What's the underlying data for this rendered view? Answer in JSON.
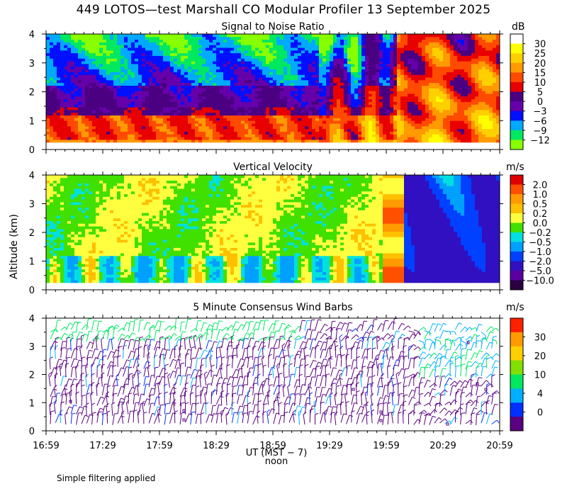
{
  "title": "449 LOTOS—test Marshall CO Modular Profiler 13 September 2025",
  "xlabel": "UT  (MST − 7)",
  "xlabel_note": "noon",
  "ylabel": "Altitude (km)",
  "footnote": "Simple filtering applied",
  "x_ticks": [
    "16:59",
    "17:29",
    "17:59",
    "18:29",
    "18:59",
    "19:29",
    "19:59",
    "20:29",
    "20:59"
  ],
  "chart_data": [
    {
      "type": "heatmap",
      "title": "Signal to Noise Ratio",
      "unit": "dB",
      "xlim": [
        "16:59",
        "20:59"
      ],
      "ylim": [
        0,
        4
      ],
      "y_ticks": [
        0,
        1,
        2,
        3,
        4
      ],
      "colorbar": {
        "labels": [
          "30",
          "25",
          "20",
          "15",
          "10",
          "5",
          "0",
          "−3",
          "−6",
          "−9",
          "−12"
        ],
        "colors": [
          "#ffffff",
          "#ffff00",
          "#ffd000",
          "#ff9a00",
          "#ff4a00",
          "#e80000",
          "#4a0080",
          "#6600aa",
          "#0010ff",
          "#00aaff",
          "#00e860",
          "#88ff00"
        ]
      },
      "regions": [
        {
          "x": [
            "16:59",
            "20:59"
          ],
          "y": [
            0.2,
            1.2
          ],
          "level": "10-20 dB"
        },
        {
          "x": [
            "16:59",
            "19:29"
          ],
          "y": [
            1.2,
            2.3
          ],
          "level": "0-5 dB"
        },
        {
          "x": [
            "16:59",
            "19:29"
          ],
          "y": [
            2.3,
            4.0
          ],
          "level": "-12 to -3 dB"
        },
        {
          "x": [
            "19:59",
            "20:59"
          ],
          "y": [
            0.2,
            4.0
          ],
          "level": "10-25 dB"
        }
      ]
    },
    {
      "type": "heatmap",
      "title": "Vertical Velocity",
      "unit": "m/s",
      "xlim": [
        "16:59",
        "20:59"
      ],
      "ylim": [
        0,
        4
      ],
      "y_ticks": [
        0,
        1,
        2,
        3,
        4
      ],
      "colorbar": {
        "labels": [
          "2.0",
          "1.0",
          "0.5",
          "0.2",
          "0.0",
          "−0.2",
          "−0.5",
          "−1.0",
          "−2.0",
          "−5.0",
          "−10.0"
        ],
        "colors": [
          "#e00000",
          "#ff5000",
          "#ff9a00",
          "#ffc000",
          "#ffff40",
          "#40e000",
          "#00e0e0",
          "#00a0ff",
          "#0040ff",
          "#3010c0",
          "#5a00a0",
          "#2a0040"
        ]
      },
      "regions": [
        {
          "x": [
            "16:59",
            "19:44"
          ],
          "y": [
            0.2,
            4.0
          ],
          "level": "-0.2 to 0.2 m/s"
        },
        {
          "x": [
            "19:44",
            "20:59"
          ],
          "y": [
            0.2,
            4.0
          ],
          "level": "-5 to -1 m/s"
        }
      ]
    },
    {
      "type": "barbs",
      "title": "5 Minute Consensus Wind Barbs",
      "unit": "m/s",
      "xlim": [
        "16:59",
        "20:59"
      ],
      "ylim": [
        0,
        4
      ],
      "y_ticks": [
        0,
        1,
        2,
        3,
        4
      ],
      "colorbar": {
        "labels": [
          "30",
          "20",
          "10",
          "4",
          "0"
        ],
        "colors": [
          "#ff2000",
          "#ff9a00",
          "#ffd000",
          "#80e000",
          "#00e860",
          "#00b0ff",
          "#0030ff",
          "#5a0080"
        ]
      }
    }
  ]
}
